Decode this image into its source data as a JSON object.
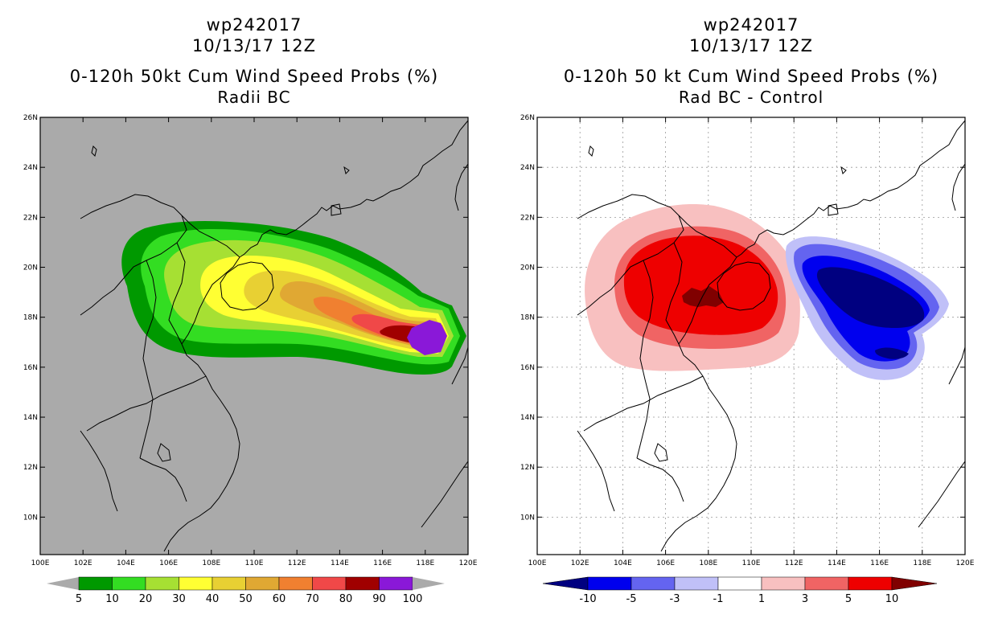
{
  "panels": [
    {
      "id": "left",
      "titles": [
        "wp242017",
        "10/13/17 12Z",
        "0-120h 50kt Cum Wind Speed Probs (%)",
        "Radii BC"
      ],
      "lat_labels": [
        "26N",
        "24N",
        "22N",
        "20N",
        "18N",
        "16N",
        "14N",
        "12N",
        "10N"
      ],
      "lon_labels": [
        "100E",
        "102E",
        "104E",
        "106E",
        "108E",
        "110E",
        "112E",
        "114E",
        "116E",
        "118E",
        "120E"
      ],
      "colorbar": {
        "colors": [
          "#009900",
          "#33dd22",
          "#a6e033",
          "#ffff33",
          "#e8d033",
          "#e0a833",
          "#f08030",
          "#f04848",
          "#a00000",
          "#8a18d8"
        ],
        "end_color": "#aaaaaa",
        "labels": [
          "5",
          "10",
          "20",
          "30",
          "40",
          "50",
          "60",
          "70",
          "80",
          "90",
          "100"
        ]
      }
    },
    {
      "id": "right",
      "titles": [
        "wp242017",
        "10/13/17 12Z",
        "0-120h 50 kt Cum Wind Speed Probs (%)",
        "Rad BC - Control"
      ],
      "lat_labels": [
        "26N",
        "24N",
        "22N",
        "20N",
        "18N",
        "16N",
        "14N",
        "12N",
        "10N"
      ],
      "lon_labels": [
        "100E",
        "102E",
        "104E",
        "106E",
        "108E",
        "110E",
        "112E",
        "114E",
        "116E",
        "118E",
        "120E"
      ],
      "colorbar": {
        "colors": [
          "#000080",
          "#0000ee",
          "#6464f0",
          "#c0c0f8",
          "#ffffff",
          "#f8c0c0",
          "#f06464",
          "#ee0000",
          "#800000"
        ],
        "labels": [
          "-10",
          "-5",
          "-3",
          "-1",
          "1",
          "3",
          "5",
          "10"
        ]
      }
    }
  ]
}
